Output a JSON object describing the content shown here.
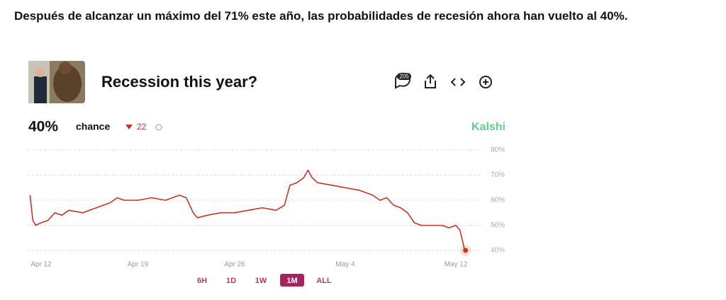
{
  "caption": "Después de alcanzar un máximo del 71% este año, las probabilidades de recesión ahora han vuelto al 40%.",
  "chart_data": {
    "type": "line",
    "title": "Recession this year?",
    "comments": 205,
    "current": {
      "value": 40,
      "label": "40%"
    },
    "current_text": "chance",
    "change": 22,
    "change_color": "#c4342a",
    "source": "Kalshi",
    "ranges": [
      "6H",
      "1D",
      "1W",
      "1M",
      "ALL"
    ],
    "selected_range": "1M",
    "x": [
      11.2,
      11.4,
      11.6,
      12,
      12.5,
      13,
      13.5,
      14,
      15,
      16,
      17,
      17.5,
      18,
      19,
      20,
      21,
      22,
      22.5,
      23,
      23.3,
      24,
      25,
      26,
      27,
      28,
      29,
      29.6,
      30,
      30.5,
      31,
      31.3,
      31.6,
      32,
      33,
      34,
      35,
      36,
      36.5,
      37,
      37.5,
      38,
      38.5,
      39,
      39.5,
      40,
      41,
      41.5,
      42,
      42.3,
      42.6,
      42.7
    ],
    "series": [
      {
        "name": "Recession this year?",
        "color": "#c4342a",
        "values": [
          62,
          52,
          50,
          51,
          52,
          55,
          54,
          56,
          55,
          57,
          59,
          61,
          60,
          60,
          61,
          60,
          62,
          61,
          55,
          53,
          54,
          55,
          55,
          56,
          57,
          56,
          58,
          66,
          67,
          69,
          72,
          69,
          67,
          66,
          65,
          64,
          62,
          60,
          61,
          58,
          57,
          55,
          51,
          50,
          50,
          50,
          49,
          50,
          48,
          41,
          40
        ]
      }
    ],
    "xlim": [
      11,
      44
    ],
    "xticks": [
      {
        "value": 12,
        "label": "Apr 12"
      },
      {
        "value": 19,
        "label": "Apr 19"
      },
      {
        "value": 26,
        "label": "Apr 26"
      },
      {
        "value": 34,
        "label": "May 4"
      },
      {
        "value": 42,
        "label": "May 12"
      }
    ],
    "ylim": [
      38,
      82
    ],
    "yticks": [
      {
        "value": 40,
        "label": "40%"
      },
      {
        "value": 50,
        "label": "50%"
      },
      {
        "value": 60,
        "label": "60%"
      },
      {
        "value": 70,
        "label": "70%"
      },
      {
        "value": 80,
        "label": "80%"
      }
    ],
    "grid": true
  }
}
